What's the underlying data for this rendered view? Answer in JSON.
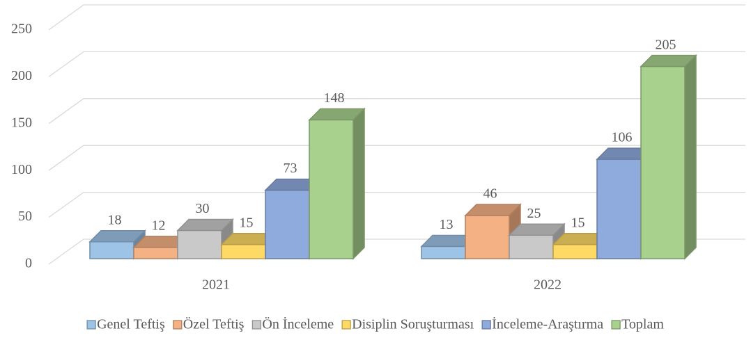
{
  "chart_data": {
    "type": "bar3d",
    "categories": [
      "2021",
      "2022"
    ],
    "series": [
      {
        "name": "Genel Teftiş",
        "color": "#9dc3e6",
        "values": [
          18,
          13
        ]
      },
      {
        "name": "Özel Teftiş",
        "color": "#f4b183",
        "values": [
          12,
          46
        ]
      },
      {
        "name": "Ön İnceleme",
        "color": "#c9c9c9",
        "values": [
          30,
          25
        ]
      },
      {
        "name": "Disiplin Soruşturması",
        "color": "#ffd966",
        "values": [
          15,
          15
        ]
      },
      {
        "name": "İnceleme-Araştırma",
        "color": "#8faadc",
        "values": [
          73,
          106
        ]
      },
      {
        "name": "Toplam",
        "color": "#a9d18e",
        "values": [
          148,
          205
        ]
      }
    ],
    "ylim": [
      0,
      250
    ],
    "yticks": [
      0,
      50,
      100,
      150,
      200,
      250
    ],
    "grid": true,
    "legend": "bottom"
  }
}
